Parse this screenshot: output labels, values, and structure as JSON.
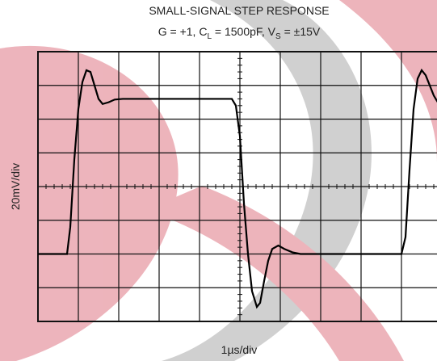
{
  "chart_data": {
    "type": "line",
    "title": "SMALL-SIGNAL STEP RESPONSE",
    "subtitle_parts": [
      {
        "text": "G = +1, C"
      },
      {
        "text": "L",
        "sub": true
      },
      {
        "text": " = 1500pF, V"
      },
      {
        "text": "S",
        "sub": true
      },
      {
        "text": " = ±15V"
      }
    ],
    "x_label": "1µs/div",
    "y_label": "20mV/div",
    "xlim": [
      0,
      10
    ],
    "ylim": [
      0,
      8
    ],
    "xticks": [
      0,
      1,
      2,
      3,
      4,
      5,
      6,
      7,
      8,
      9,
      10
    ],
    "yticks": [
      0,
      1,
      2,
      3,
      4,
      5,
      6,
      7,
      8
    ],
    "grid": true,
    "series": [
      {
        "color": "#000000",
        "x": [
          0,
          0.72,
          0.8,
          0.9,
          1.0,
          1.1,
          1.2,
          1.3,
          1.4,
          1.5,
          1.6,
          1.75,
          1.9,
          2.1,
          4.8,
          4.9,
          5.0,
          5.1,
          5.2,
          5.3,
          5.42,
          5.5,
          5.6,
          5.7,
          5.8,
          5.95,
          6.1,
          6.3,
          6.5,
          9.0,
          9.1,
          9.2,
          9.3,
          9.4,
          9.5,
          9.6,
          9.8,
          9.9
        ],
        "values": [
          2.0,
          2.0,
          2.8,
          4.8,
          6.3,
          7.1,
          7.45,
          7.4,
          7.0,
          6.6,
          6.45,
          6.5,
          6.58,
          6.6,
          6.6,
          6.4,
          5.5,
          3.5,
          2.0,
          0.9,
          0.43,
          0.55,
          1.2,
          1.8,
          2.15,
          2.25,
          2.15,
          2.05,
          2.0,
          2.0,
          2.5,
          4.5,
          6.3,
          7.2,
          7.45,
          7.3,
          6.7,
          6.5
        ]
      }
    ]
  }
}
